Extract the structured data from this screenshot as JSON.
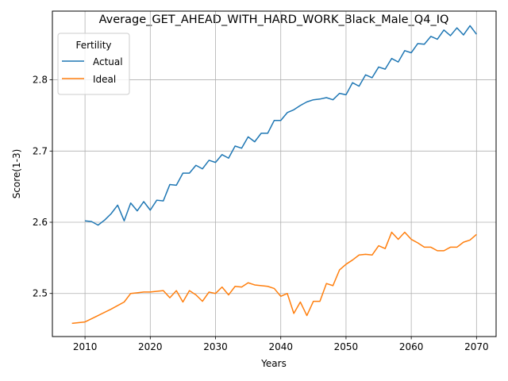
{
  "chart_data": {
    "type": "line",
    "title": "Average_GET_AHEAD_WITH_HARD_WORK_Black_Male_Q4_IQ",
    "xlabel": "Years",
    "ylabel": "Score(1-3)",
    "xlim": [
      2005,
      2073
    ],
    "ylim": [
      2.4395,
      2.8965
    ],
    "xticks": [
      2010,
      2020,
      2030,
      2040,
      2050,
      2060,
      2070
    ],
    "yticks": [
      2.5,
      2.6,
      2.7,
      2.8
    ],
    "grid": true,
    "legend": {
      "title": "Fertility",
      "placement": "top-left"
    },
    "series": [
      {
        "name": "Actual",
        "color": "#1f77b4",
        "x": [
          2010,
          2011,
          2012,
          2013,
          2014,
          2015,
          2016,
          2017,
          2018,
          2019,
          2020,
          2021,
          2022,
          2023,
          2024,
          2025,
          2026,
          2027,
          2028,
          2029,
          2030,
          2031,
          2032,
          2033,
          2034,
          2035,
          2036,
          2037,
          2038,
          2039,
          2040,
          2041,
          2042,
          2043,
          2044,
          2045,
          2046,
          2047,
          2048,
          2049,
          2050,
          2051,
          2052,
          2053,
          2054,
          2055,
          2056,
          2057,
          2058,
          2059,
          2060,
          2061,
          2062,
          2063,
          2064,
          2065,
          2066,
          2067,
          2068,
          2069,
          2070
        ],
        "values": [
          2.602,
          2.601,
          2.596,
          2.603,
          2.612,
          2.624,
          2.602,
          2.627,
          2.616,
          2.629,
          2.617,
          2.631,
          2.63,
          2.653,
          2.652,
          2.669,
          2.669,
          2.68,
          2.675,
          2.687,
          2.684,
          2.695,
          2.69,
          2.707,
          2.704,
          2.72,
          2.713,
          2.725,
          2.725,
          2.743,
          2.743,
          2.754,
          2.758,
          2.764,
          2.769,
          2.772,
          2.773,
          2.775,
          2.772,
          2.781,
          2.779,
          2.796,
          2.791,
          2.807,
          2.803,
          2.818,
          2.815,
          2.83,
          2.825,
          2.841,
          2.838,
          2.851,
          2.85,
          2.861,
          2.857,
          2.87,
          2.862,
          2.873,
          2.863,
          2.876,
          2.864
        ]
      },
      {
        "name": "Ideal",
        "color": "#ff7f0e",
        "x": [
          2008,
          2010,
          2012,
          2014,
          2016,
          2017,
          2018,
          2019,
          2020,
          2021,
          2022,
          2023,
          2024,
          2025,
          2026,
          2027,
          2028,
          2029,
          2030,
          2031,
          2032,
          2033,
          2034,
          2035,
          2036,
          2037,
          2038,
          2039,
          2040,
          2041,
          2042,
          2043,
          2044,
          2045,
          2046,
          2047,
          2048,
          2049,
          2050,
          2051,
          2052,
          2053,
          2054,
          2055,
          2056,
          2057,
          2058,
          2059,
          2060,
          2061,
          2062,
          2063,
          2064,
          2065,
          2066,
          2067,
          2068,
          2069,
          2070
        ],
        "values": [
          2.458,
          2.46,
          2.469,
          2.478,
          2.488,
          2.5,
          2.501,
          2.502,
          2.502,
          2.503,
          2.504,
          2.494,
          2.504,
          2.488,
          2.504,
          2.498,
          2.489,
          2.502,
          2.5,
          2.509,
          2.498,
          2.51,
          2.509,
          2.515,
          2.512,
          2.511,
          2.51,
          2.507,
          2.496,
          2.5,
          2.472,
          2.488,
          2.469,
          2.489,
          2.489,
          2.514,
          2.511,
          2.533,
          2.541,
          2.547,
          2.554,
          2.555,
          2.554,
          2.567,
          2.563,
          2.586,
          2.576,
          2.586,
          2.576,
          2.571,
          2.565,
          2.565,
          2.56,
          2.56,
          2.565,
          2.565,
          2.572,
          2.575,
          2.583
        ]
      }
    ]
  }
}
